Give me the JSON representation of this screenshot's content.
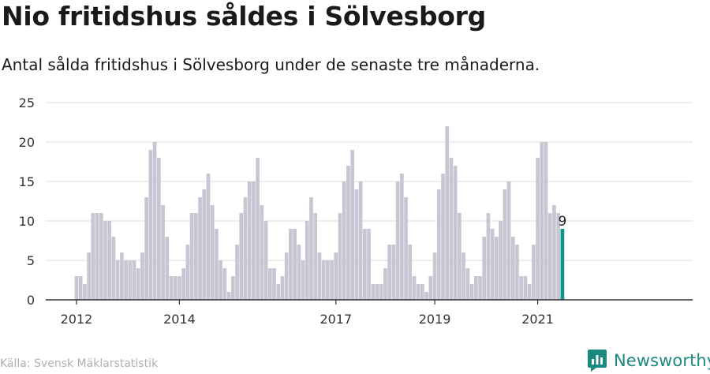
{
  "header": {
    "title": "Nio fritidshus såldes i Sölvesborg",
    "subtitle": "Antal sålda fritidshus i Sölvesborg under de senaste tre månaderna."
  },
  "footer": {
    "source": "Källa: Svensk Mäklarstatistik",
    "brand": "Newsworthy"
  },
  "colors": {
    "bar": "#c7c6d3",
    "highlight": "#13968a",
    "grid": "#dcdcdc",
    "axis": "#333333",
    "brand": "#1a8a80"
  },
  "chart_data": {
    "type": "bar",
    "title": "Nio fritidshus såldes i Sölvesborg",
    "xlabel": "",
    "ylabel": "",
    "ylim": [
      0,
      25
    ],
    "yticks": [
      0,
      5,
      10,
      15,
      20,
      25
    ],
    "xtick_labels": [
      "2012",
      "2014",
      "2017",
      "2019",
      "2021"
    ],
    "xtick_index": [
      0,
      25,
      63,
      87,
      112
    ],
    "values": [
      3,
      3,
      2,
      6,
      11,
      11,
      11,
      10,
      10,
      8,
      5,
      6,
      5,
      5,
      5,
      4,
      6,
      13,
      19,
      20,
      18,
      12,
      8,
      3,
      3,
      3,
      4,
      7,
      11,
      11,
      13,
      14,
      16,
      12,
      9,
      5,
      4,
      1,
      3,
      7,
      11,
      13,
      15,
      15,
      18,
      12,
      10,
      4,
      4,
      2,
      3,
      6,
      9,
      9,
      7,
      5,
      10,
      13,
      11,
      6,
      5,
      5,
      5,
      6,
      11,
      15,
      17,
      19,
      14,
      15,
      9,
      9,
      2,
      2,
      2,
      4,
      7,
      7,
      15,
      16,
      13,
      7,
      3,
      2,
      2,
      1,
      3,
      6,
      14,
      16,
      22,
      18,
      17,
      11,
      6,
      4,
      2,
      3,
      3,
      8,
      11,
      9,
      8,
      10,
      14,
      15,
      8,
      7,
      3,
      3,
      2,
      7,
      18,
      20,
      20,
      11,
      12,
      11,
      9
    ],
    "highlight_index": 118,
    "highlight_label": "9"
  }
}
